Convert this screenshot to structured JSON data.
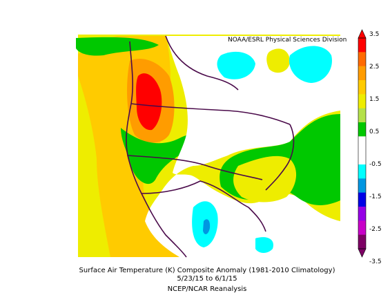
{
  "credit": "NOAA/ESRL Physical Sciences Division",
  "caption": {
    "line1": "Surface Air Temperature (K) Composite Anomaly (1981-2010 Climatology)",
    "line2": "5/23/15  to 6/1/15",
    "line3": "NCEP/NCAR Reanalysis"
  },
  "colorbar": {
    "ticks": [
      "3.5",
      "2.5",
      "1.5",
      "0.5",
      "-0.5",
      "-1.5",
      "-2.5",
      "-3.5"
    ],
    "colors": [
      "#ff0000",
      "#ff6a00",
      "#ff9c00",
      "#ffcb00",
      "#eeed00",
      "#b4e14a",
      "#00c800",
      "#ffffff",
      "#ffffff",
      "#00ffff",
      "#0096e1",
      "#0000e6",
      "#9600e6",
      "#c800c8",
      "#7d0064"
    ]
  },
  "legend_colors": {
    "strong_warm": "#ff0000",
    "warm": "#ff9c00",
    "mild_warm": "#eeed00",
    "slight_warm": "#00c800",
    "neutral": "#ffffff",
    "cool": "#00ffff",
    "cold": "#0096e1",
    "boundaries": "#4a0a4a"
  }
}
